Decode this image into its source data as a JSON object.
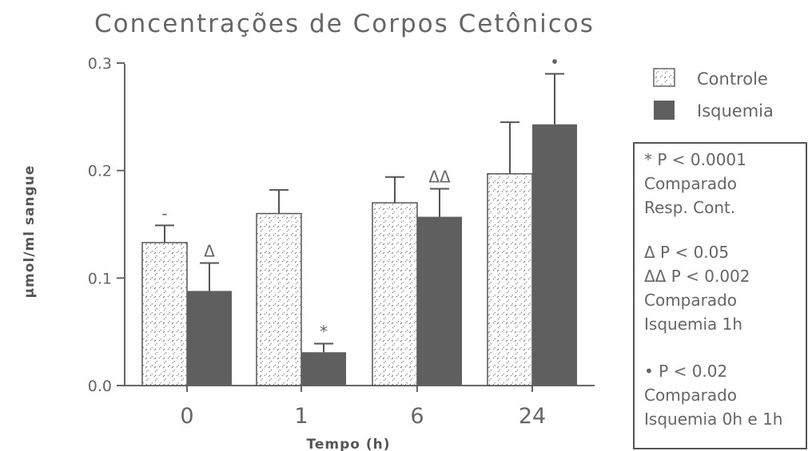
{
  "chart_data": {
    "type": "bar",
    "title": "Concentrações de Corpos Cetônicos",
    "xlabel": "Tempo (h)",
    "ylabel": "µmol/ml sangue",
    "categories": [
      "0",
      "1",
      "6",
      "24"
    ],
    "ylim": [
      0.0,
      0.3
    ],
    "yticks": [
      "0.0",
      "0.1",
      "0.2",
      "0.3"
    ],
    "series": [
      {
        "name": "Controle",
        "pattern": "dotted-hatch",
        "color": "#ffffff",
        "values": [
          0.133,
          0.16,
          0.17,
          0.197
        ],
        "errors": [
          0.016,
          0.022,
          0.024,
          0.048
        ],
        "annotations": [
          "-",
          "",
          "",
          ""
        ]
      },
      {
        "name": "Isquemia",
        "pattern": "solid",
        "color": "#5f5f5f",
        "values": [
          0.088,
          0.031,
          0.157,
          0.243
        ],
        "errors": [
          0.026,
          0.008,
          0.026,
          0.047
        ],
        "annotations": [
          "Δ",
          "*",
          "ΔΔ",
          "•"
        ]
      }
    ],
    "legend_position": "top-right",
    "grid": false
  },
  "notes": [
    "* P < 0.0001",
    "Comparado",
    "Resp. Cont.",
    "Δ P < 0.05",
    "ΔΔ P < 0.002",
    "Comparado",
    "Isquemia 1h",
    "• P < 0.02",
    "Comparado",
    "Isquemia 0h e 1h"
  ]
}
